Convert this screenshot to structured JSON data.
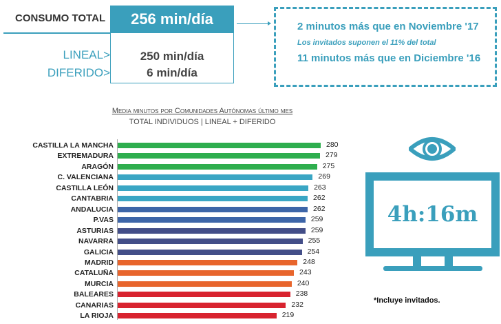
{
  "summary": {
    "total_label": "CONSUMO TOTAL",
    "total_value": "256 min/día",
    "lineal_label": "LINEAL>",
    "lineal_value": "250 min/día",
    "diferido_label": "DIFERIDO>",
    "diferido_value": "6 min/día"
  },
  "notes": {
    "line1": "2 minutos más que en Noviembre '17",
    "line2": "Los invitados suponen el 11% del total",
    "line3": "11 minutos más que en Diciembre '16"
  },
  "tv": {
    "icon": "eye-icon",
    "monitor_icon": "tv-monitor-icon",
    "value": "4h:16m",
    "footnote": "*Incluye invitados."
  },
  "colors": {
    "accent": "#3a9fbc",
    "green": "#2eae4e",
    "teal": "#3aa6c4",
    "blue": "#3d65a8",
    "navy": "#434e88",
    "orange": "#e8652c",
    "red": "#d8232f"
  },
  "chart_data": {
    "type": "bar",
    "orientation": "horizontal",
    "title": "Media minutos por Comunidades Autónomas último mes",
    "subtitle": "TOTAL INDIVIDUOS  | LINEAL + DIFERIDO",
    "categories": [
      "CASTILLA LA MANCHA",
      "EXTREMADURA",
      "ARAGÓN",
      "C. VALENCIANA",
      "CASTILLA LEÓN",
      "CANTABRIA",
      "ANDALUCIA",
      "P.VAS",
      "ASTURIAS",
      "NAVARRA",
      "GALICIA",
      "MADRID",
      "CATALUÑA",
      "MURCIA",
      "BALEARES",
      "CANARIAS",
      "LA RIOJA"
    ],
    "values": [
      280,
      279,
      275,
      269,
      263,
      262,
      262,
      259,
      259,
      255,
      254,
      248,
      243,
      240,
      238,
      232,
      219
    ],
    "bar_colors": [
      "#2eae4e",
      "#2eae4e",
      "#2eae4e",
      "#3aa6c4",
      "#3aa6c4",
      "#3aa6c4",
      "#3d65a8",
      "#3d65a8",
      "#434e88",
      "#434e88",
      "#434e88",
      "#e8652c",
      "#e8652c",
      "#e8652c",
      "#d8232f",
      "#d8232f",
      "#d8232f"
    ],
    "xlim": [
      0,
      280
    ],
    "grid": false,
    "data_labels": true
  }
}
